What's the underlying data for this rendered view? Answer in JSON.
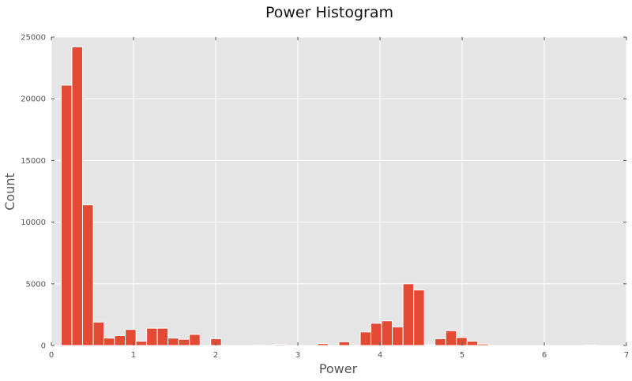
{
  "chart_data": {
    "type": "bar",
    "title": "Power Histogram",
    "xlabel": "Power",
    "ylabel": "Count",
    "xlim": [
      0,
      7
    ],
    "ylim": [
      0,
      25000
    ],
    "xticks": [
      "0",
      "1",
      "2",
      "3",
      "4",
      "5",
      "6",
      "7"
    ],
    "yticks": [
      "0",
      "5000",
      "10000",
      "15000",
      "20000",
      "25000"
    ],
    "grid": true,
    "background": "#e5e5e5",
    "grid_color": "#ffffff",
    "bar_color": "#e24a33",
    "bin_edges": [
      0.12,
      0.25,
      0.38,
      0.51,
      0.64,
      0.77,
      0.9,
      1.03,
      1.16,
      1.29,
      1.42,
      1.55,
      1.68,
      1.81,
      1.94,
      2.07,
      2.2,
      2.33,
      2.46,
      2.59,
      2.72,
      2.85,
      2.98,
      3.11,
      3.24,
      3.37,
      3.5,
      3.63,
      3.76,
      3.89,
      4.02,
      4.15,
      4.28,
      4.41,
      4.54,
      4.67,
      4.8,
      4.93,
      5.06,
      5.19,
      5.32,
      5.45,
      5.58,
      5.71,
      5.84,
      5.97,
      6.1,
      6.23,
      6.36,
      6.49,
      6.62
    ],
    "values": [
      21100,
      24200,
      11400,
      1900,
      600,
      800,
      1300,
      350,
      1400,
      1400,
      600,
      500,
      900,
      0,
      550,
      0,
      0,
      0,
      30,
      0,
      80,
      0,
      0,
      0,
      150,
      0,
      300,
      0,
      1100,
      1800,
      2000,
      1500,
      5000,
      4500,
      60,
      550,
      1200,
      650,
      350,
      120,
      0,
      0,
      0,
      0,
      0,
      0,
      0,
      0,
      0,
      40,
      0
    ]
  }
}
